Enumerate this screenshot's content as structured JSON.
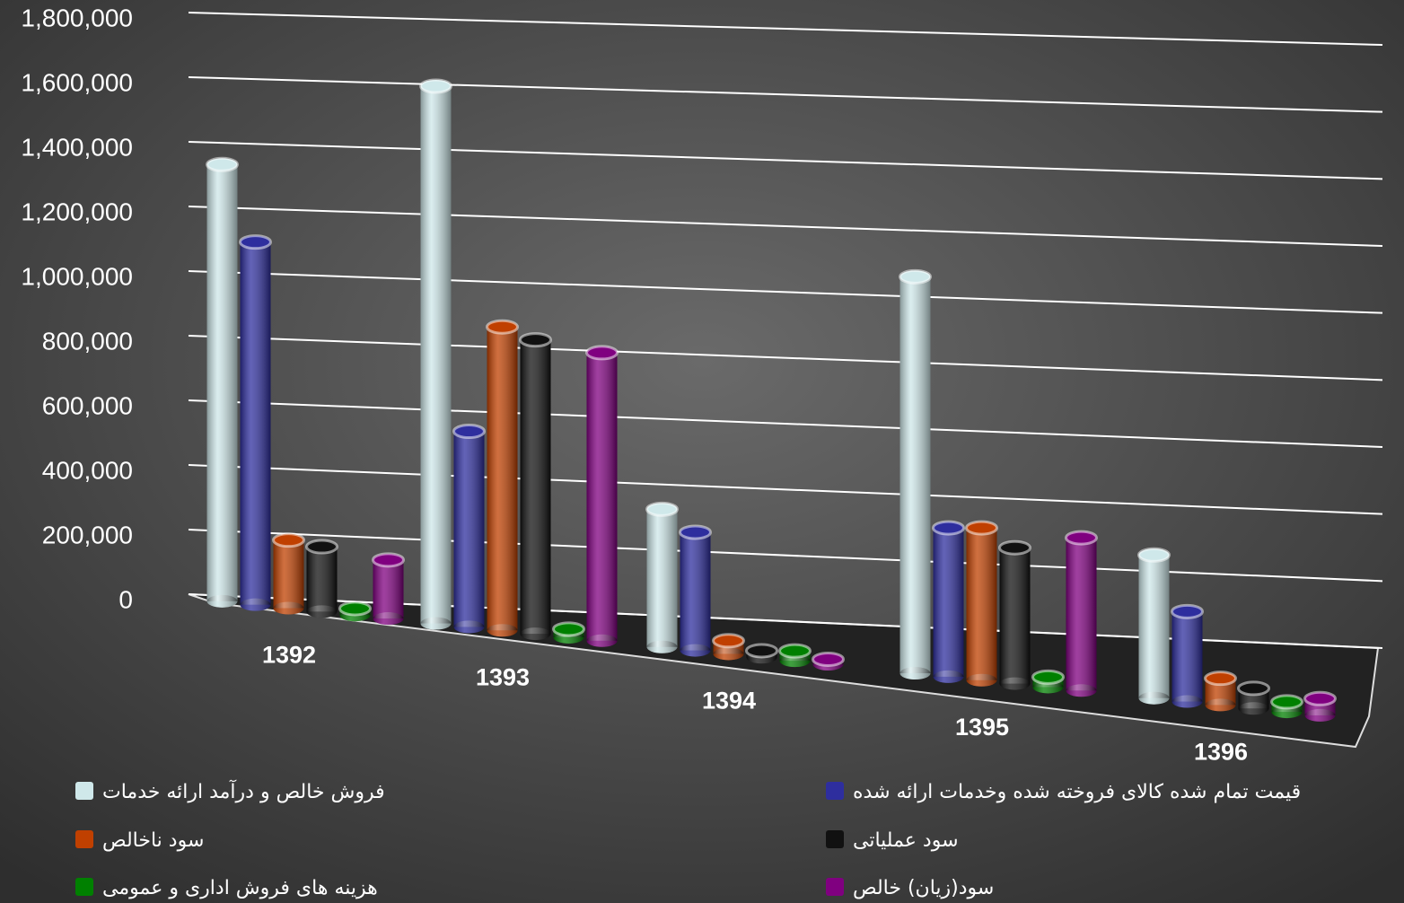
{
  "chart_data": {
    "type": "bar3d",
    "categories": [
      "1392",
      "1393",
      "1394",
      "1395",
      "1396"
    ],
    "series": [
      {
        "name": "فروش خالص و درآمد ارائه خدمات",
        "color": "#cfe8ea",
        "values": [
          1350000,
          1650000,
          420000,
          1200000,
          430000
        ]
      },
      {
        "name": "قیمت تمام شده کالای فروخته شده وخدمات ارائه شده",
        "color": "#2e2e9e",
        "values": [
          1120000,
          600000,
          360000,
          450000,
          270000
        ]
      },
      {
        "name": "سود ناخالص",
        "color": "#c04000",
        "values": [
          210000,
          930000,
          40000,
          460000,
          80000
        ]
      },
      {
        "name": "سود عملیاتی",
        "color": "#111111",
        "values": [
          200000,
          900000,
          20000,
          410000,
          60000
        ]
      },
      {
        "name": "هزینه های فروش اداری و عمومی",
        "color": "#008000",
        "values": [
          20000,
          25000,
          30000,
          30000,
          30000
        ]
      },
      {
        "name": "سود(زیان) خالص",
        "color": "#800080",
        "values": [
          180000,
          880000,
          15000,
          460000,
          50000
        ]
      }
    ],
    "ylim": [
      0,
      1800000
    ],
    "yticks": [
      0,
      {
        "value": 200000,
        "label": "200,000"
      },
      {
        "value": 400000,
        "label": "400,000"
      },
      {
        "value": 600000,
        "label": "600,000"
      },
      {
        "value": 800000,
        "label": "800,000"
      },
      {
        "value": 1000000,
        "label": "1,000,000"
      },
      {
        "value": 1200000,
        "label": "1,200,000"
      },
      {
        "value": 1400000,
        "label": "1,400,000"
      },
      {
        "value": 1600000,
        "label": "1,600,000"
      },
      {
        "value": 1800000,
        "label": "1,800,000"
      }
    ],
    "grid": true
  }
}
